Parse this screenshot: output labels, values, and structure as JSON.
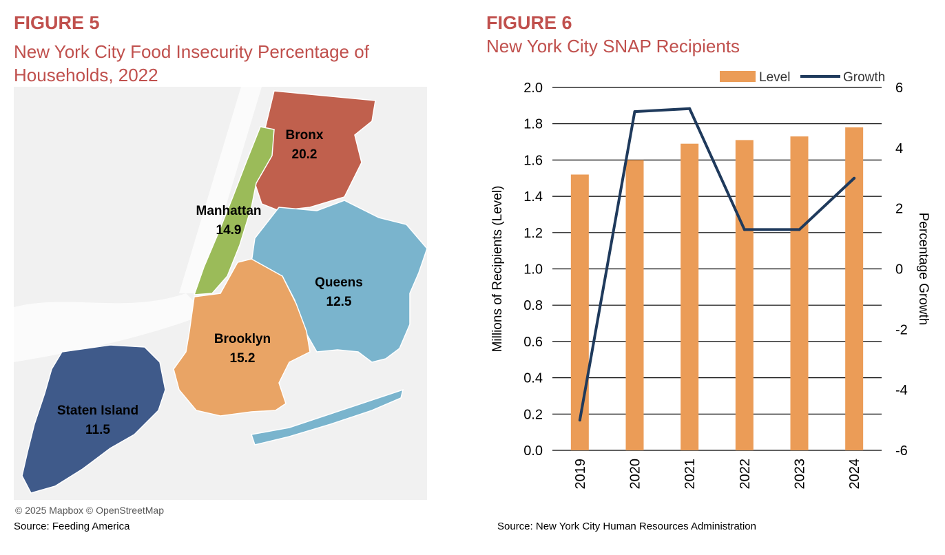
{
  "figure5": {
    "label": "FIGURE 5",
    "title": "New York City Food Insecurity Percentage of Households, 2022",
    "title_line1": "New York City Food Insecurity Percentage of",
    "title_line2": "Households, 2022",
    "credit": "© 2025 Mapbox © OpenStreetMap",
    "source": "Source: Feeding America",
    "boroughs": [
      {
        "name": "Bronx",
        "value": "20.2",
        "color": "#c0604d"
      },
      {
        "name": "Manhattan",
        "value": "14.9",
        "color": "#9bbb59"
      },
      {
        "name": "Queens",
        "value": "12.5",
        "color": "#7ab4cd"
      },
      {
        "name": "Brooklyn",
        "value": "15.2",
        "color": "#e9a465"
      },
      {
        "name": "Staten Island",
        "value": "11.5",
        "color": "#3f5a8a"
      }
    ]
  },
  "figure6": {
    "label": "FIGURE 6",
    "title": "New York City SNAP Recipients",
    "source": "Source: New York City Human Resources Administration"
  },
  "chart_data": {
    "type": "bar",
    "categories": [
      "2019",
      "2020",
      "2021",
      "2022",
      "2023",
      "2024"
    ],
    "series": [
      {
        "name": "Level",
        "type": "bar",
        "axis": "left",
        "color": "#eb9c57",
        "values": [
          1.52,
          1.6,
          1.69,
          1.71,
          1.73,
          1.78
        ]
      },
      {
        "name": "Growth",
        "type": "line",
        "axis": "right",
        "color": "#1f3a5c",
        "values": [
          -5.0,
          5.2,
          5.3,
          1.3,
          1.3,
          3.0
        ]
      }
    ],
    "ylabel": "Millions of Recipients (Level)",
    "y2label": "Percentage Growth",
    "ylim": [
      0,
      2.0
    ],
    "y2lim": [
      -6,
      6
    ],
    "yticks": [
      "0.0",
      "0.2",
      "0.4",
      "0.6",
      "0.8",
      "1.0",
      "1.2",
      "1.4",
      "1.6",
      "1.8",
      "2.0"
    ],
    "y2ticks": [
      "-6",
      "-4",
      "-2",
      "0",
      "2",
      "4",
      "6"
    ],
    "legend": "top-right",
    "grid": true
  }
}
